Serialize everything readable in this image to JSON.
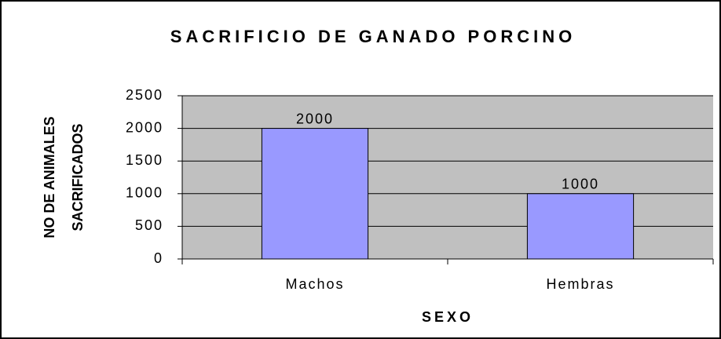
{
  "chart_data": {
    "type": "bar",
    "title": "SACRIFICIO DE GANADO PORCINO",
    "ylabel": [
      "NO DE ANIMALES",
      "SACRIFICADOS"
    ],
    "xlabel": "SEXO",
    "categories": [
      "Machos",
      "Hembras"
    ],
    "values": [
      2000,
      1000
    ],
    "color": "#9999ff",
    "ylim": [
      0,
      2500
    ],
    "yticks": [
      0,
      500,
      1000,
      1500,
      2000,
      2500
    ],
    "grid": true
  }
}
